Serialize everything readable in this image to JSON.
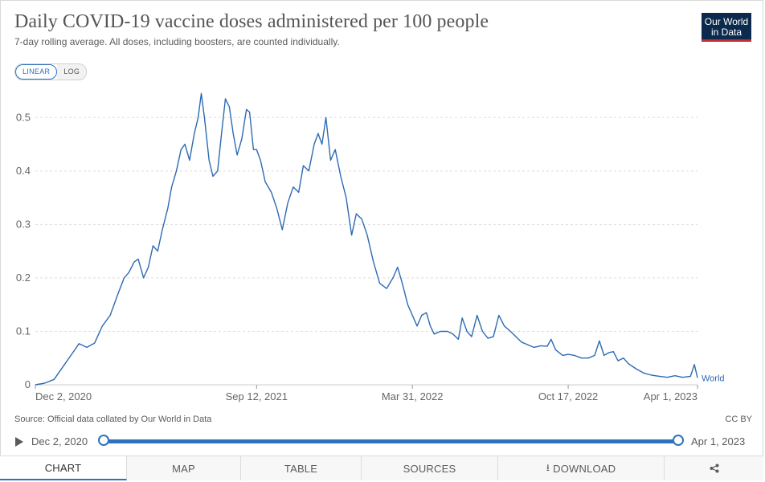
{
  "header": {
    "title": "Daily COVID-19 vaccine doses administered per 100 people",
    "subtitle": "7-day rolling average. All doses, including boosters, are counted individually.",
    "logo": "Our World in Data"
  },
  "scale_toggle": {
    "linear": "LINEAR",
    "log": "LOG",
    "selected": "LINEAR"
  },
  "footer": {
    "source": "Source: Official data collated by Our World in Data",
    "license": "CC BY"
  },
  "timeline": {
    "start": "Dec 2, 2020",
    "end": "Apr 1, 2023"
  },
  "tabs": [
    {
      "label": "CHART",
      "active": true
    },
    {
      "label": "MAP"
    },
    {
      "label": "TABLE"
    },
    {
      "label": "SOURCES"
    },
    {
      "label": "DOWNLOAD",
      "icon": "download-icon"
    },
    {
      "label": "",
      "icon": "share-icon"
    }
  ],
  "colors": {
    "series": "#2d6ab3",
    "accent": "#2d72be",
    "grid": "#dddddd"
  },
  "chart_data": {
    "type": "line",
    "title": "Daily COVID-19 vaccine doses administered per 100 people",
    "subtitle": "7-day rolling average. All doses, including boosters, are counted individually.",
    "x_axis": {
      "type": "date",
      "range": [
        "2020-12-02",
        "2023-04-01"
      ],
      "ticks": [
        {
          "date": "2020-12-02",
          "label": "Dec 2, 2020"
        },
        {
          "date": "2021-09-12",
          "label": "Sep 12, 2021"
        },
        {
          "date": "2022-03-31",
          "label": "Mar 31, 2022"
        },
        {
          "date": "2022-10-17",
          "label": "Oct 17, 2022"
        },
        {
          "date": "2023-04-01",
          "label": "Apr 1, 2023"
        }
      ]
    },
    "y_axis": {
      "ylim": [
        0,
        0.55
      ],
      "ticks": [
        0,
        0.1,
        0.2,
        0.3,
        0.4,
        0.5
      ],
      "tick_labels": [
        "0",
        "0.1",
        "0.2",
        "0.3",
        "0.4",
        "0.5"
      ]
    },
    "grid": true,
    "legend": "end-of-line label",
    "series": [
      {
        "name": "World",
        "points": [
          [
            "2020-12-02",
            0.0
          ],
          [
            "2020-12-14",
            0.003
          ],
          [
            "2020-12-26",
            0.01
          ],
          [
            "2021-01-07",
            0.035
          ],
          [
            "2021-01-19",
            0.06
          ],
          [
            "2021-01-27",
            0.077
          ],
          [
            "2021-02-06",
            0.07
          ],
          [
            "2021-02-16",
            0.078
          ],
          [
            "2021-02-26",
            0.11
          ],
          [
            "2021-03-08",
            0.13
          ],
          [
            "2021-03-18",
            0.17
          ],
          [
            "2021-03-26",
            0.2
          ],
          [
            "2021-04-01",
            0.21
          ],
          [
            "2021-04-08",
            0.23
          ],
          [
            "2021-04-13",
            0.235
          ],
          [
            "2021-04-20",
            0.2
          ],
          [
            "2021-04-26",
            0.22
          ],
          [
            "2021-05-02",
            0.26
          ],
          [
            "2021-05-08",
            0.25
          ],
          [
            "2021-05-14",
            0.29
          ],
          [
            "2021-05-21",
            0.33
          ],
          [
            "2021-05-26",
            0.37
          ],
          [
            "2021-06-01",
            0.4
          ],
          [
            "2021-06-07",
            0.44
          ],
          [
            "2021-06-12",
            0.45
          ],
          [
            "2021-06-18",
            0.42
          ],
          [
            "2021-06-24",
            0.47
          ],
          [
            "2021-06-29",
            0.5
          ],
          [
            "2021-07-03",
            0.545
          ],
          [
            "2021-07-07",
            0.5
          ],
          [
            "2021-07-13",
            0.42
          ],
          [
            "2021-07-18",
            0.39
          ],
          [
            "2021-07-24",
            0.4
          ],
          [
            "2021-07-29",
            0.47
          ],
          [
            "2021-08-03",
            0.535
          ],
          [
            "2021-08-08",
            0.52
          ],
          [
            "2021-08-13",
            0.47
          ],
          [
            "2021-08-18",
            0.43
          ],
          [
            "2021-08-24",
            0.46
          ],
          [
            "2021-08-30",
            0.515
          ],
          [
            "2021-09-03",
            0.51
          ],
          [
            "2021-09-08",
            0.44
          ],
          [
            "2021-09-12",
            0.44
          ],
          [
            "2021-09-17",
            0.42
          ],
          [
            "2021-09-23",
            0.38
          ],
          [
            "2021-10-01",
            0.36
          ],
          [
            "2021-10-08",
            0.33
          ],
          [
            "2021-10-15",
            0.29
          ],
          [
            "2021-10-22",
            0.34
          ],
          [
            "2021-10-29",
            0.37
          ],
          [
            "2021-11-05",
            0.36
          ],
          [
            "2021-11-11",
            0.41
          ],
          [
            "2021-11-18",
            0.4
          ],
          [
            "2021-11-25",
            0.45
          ],
          [
            "2021-11-30",
            0.47
          ],
          [
            "2021-12-05",
            0.45
          ],
          [
            "2021-12-10",
            0.5
          ],
          [
            "2021-12-16",
            0.42
          ],
          [
            "2021-12-22",
            0.44
          ],
          [
            "2021-12-29",
            0.39
          ],
          [
            "2022-01-05",
            0.35
          ],
          [
            "2022-01-12",
            0.28
          ],
          [
            "2022-01-18",
            0.32
          ],
          [
            "2022-01-25",
            0.31
          ],
          [
            "2022-02-01",
            0.28
          ],
          [
            "2022-02-09",
            0.23
          ],
          [
            "2022-02-17",
            0.19
          ],
          [
            "2022-02-26",
            0.18
          ],
          [
            "2022-03-06",
            0.2
          ],
          [
            "2022-03-12",
            0.22
          ],
          [
            "2022-03-18",
            0.19
          ],
          [
            "2022-03-25",
            0.15
          ],
          [
            "2022-03-31",
            0.13
          ],
          [
            "2022-04-06",
            0.11
          ],
          [
            "2022-04-12",
            0.13
          ],
          [
            "2022-04-18",
            0.135
          ],
          [
            "2022-04-23",
            0.11
          ],
          [
            "2022-04-28",
            0.095
          ],
          [
            "2022-05-06",
            0.1
          ],
          [
            "2022-05-15",
            0.1
          ],
          [
            "2022-05-22",
            0.095
          ],
          [
            "2022-05-29",
            0.085
          ],
          [
            "2022-06-03",
            0.125
          ],
          [
            "2022-06-09",
            0.1
          ],
          [
            "2022-06-15",
            0.09
          ],
          [
            "2022-06-22",
            0.13
          ],
          [
            "2022-06-29",
            0.1
          ],
          [
            "2022-07-06",
            0.087
          ],
          [
            "2022-07-13",
            0.09
          ],
          [
            "2022-07-20",
            0.13
          ],
          [
            "2022-07-27",
            0.11
          ],
          [
            "2022-08-04",
            0.1
          ],
          [
            "2022-08-11",
            0.09
          ],
          [
            "2022-08-18",
            0.08
          ],
          [
            "2022-08-26",
            0.075
          ],
          [
            "2022-09-03",
            0.07
          ],
          [
            "2022-09-12",
            0.073
          ],
          [
            "2022-09-20",
            0.072
          ],
          [
            "2022-09-25",
            0.085
          ],
          [
            "2022-10-01",
            0.065
          ],
          [
            "2022-10-10",
            0.055
          ],
          [
            "2022-10-17",
            0.057
          ],
          [
            "2022-10-25",
            0.055
          ],
          [
            "2022-11-03",
            0.05
          ],
          [
            "2022-11-12",
            0.05
          ],
          [
            "2022-11-20",
            0.055
          ],
          [
            "2022-11-26",
            0.082
          ],
          [
            "2022-12-02",
            0.055
          ],
          [
            "2022-12-08",
            0.06
          ],
          [
            "2022-12-14",
            0.062
          ],
          [
            "2022-12-20",
            0.045
          ],
          [
            "2022-12-27",
            0.05
          ],
          [
            "2023-01-02",
            0.04
          ],
          [
            "2023-01-12",
            0.03
          ],
          [
            "2023-01-22",
            0.022
          ],
          [
            "2023-02-01",
            0.018
          ],
          [
            "2023-02-11",
            0.016
          ],
          [
            "2023-02-21",
            0.014
          ],
          [
            "2023-03-03",
            0.017
          ],
          [
            "2023-03-13",
            0.014
          ],
          [
            "2023-03-23",
            0.016
          ],
          [
            "2023-03-28",
            0.038
          ],
          [
            "2023-04-01",
            0.013
          ]
        ]
      }
    ]
  }
}
